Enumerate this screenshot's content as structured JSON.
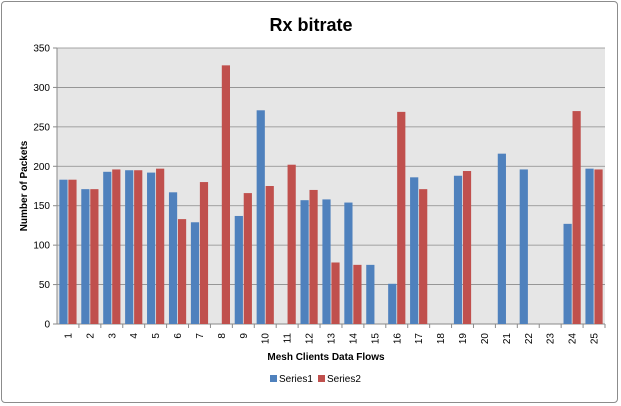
{
  "chart_data": {
    "type": "bar",
    "title": "Rx bitrate",
    "xlabel": "Mesh Clients Data Flows",
    "ylabel": "Number of Packets",
    "ylim": [
      0,
      350
    ],
    "yticks": [
      0,
      50,
      100,
      150,
      200,
      250,
      300,
      350
    ],
    "grid": true,
    "legend_position": "bottom",
    "categories": [
      "1",
      "2",
      "3",
      "4",
      "5",
      "6",
      "7",
      "8",
      "9",
      "10",
      "11",
      "12",
      "13",
      "14",
      "15",
      "16",
      "17",
      "18",
      "19",
      "20",
      "21",
      "22",
      "23",
      "24",
      "25"
    ],
    "series": [
      {
        "name": "Series1",
        "color": "#4f81bd",
        "values": [
          183,
          171,
          193,
          195,
          192,
          167,
          129,
          0,
          137,
          271,
          0,
          157,
          158,
          154,
          75,
          51,
          186,
          0,
          188,
          0,
          216,
          196,
          0,
          127,
          197
        ]
      },
      {
        "name": "Series2",
        "color": "#c0504d",
        "values": [
          183,
          171,
          196,
          195,
          197,
          133,
          180,
          328,
          166,
          175,
          202,
          170,
          78,
          75,
          0,
          269,
          171,
          0,
          194,
          0,
          0,
          0,
          0,
          270,
          196
        ]
      }
    ]
  }
}
